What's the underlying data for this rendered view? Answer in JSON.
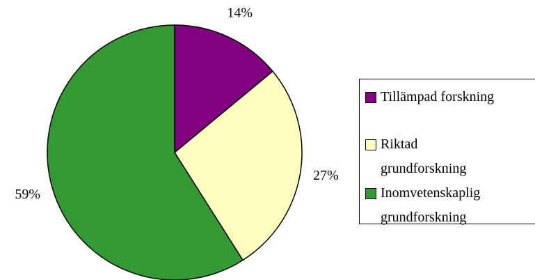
{
  "chart_data": {
    "type": "pie",
    "categories": [
      "Tillämpad forskning",
      "Riktad grundforskning",
      "Inomvetenskaplig grundforskning"
    ],
    "values": [
      14,
      27,
      59
    ],
    "value_labels": [
      "14%",
      "27%",
      "59%"
    ],
    "colors": [
      "#800080",
      "#ffffc0",
      "#339933"
    ],
    "legend": "right"
  }
}
